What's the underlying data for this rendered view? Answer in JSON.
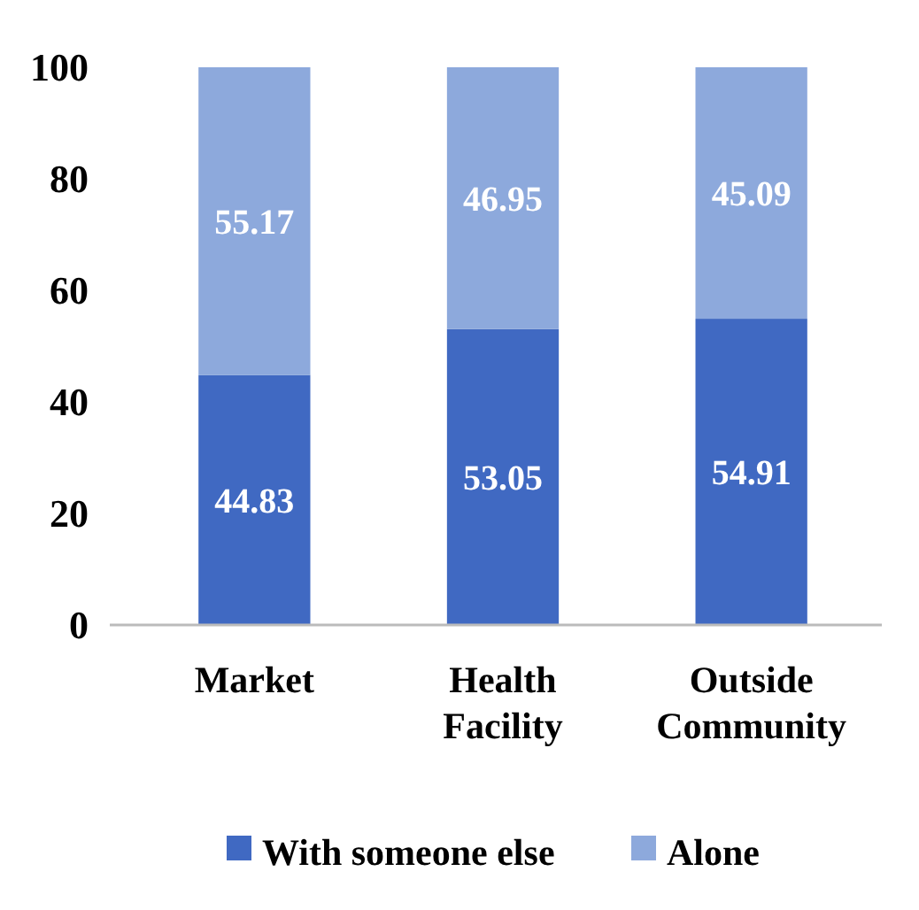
{
  "chart_data": {
    "type": "bar",
    "stacked": true,
    "categories": [
      "Market",
      "Health Facility",
      "Outside Community"
    ],
    "series": [
      {
        "name": "With someone else",
        "color": "#4069c2",
        "values": [
          44.83,
          53.05,
          54.91
        ]
      },
      {
        "name": "Alone",
        "color": "#8da9dc",
        "values": [
          55.17,
          46.95,
          45.09
        ]
      }
    ],
    "ylim": [
      0,
      100
    ],
    "yticks": [
      0,
      20,
      40,
      60,
      80,
      100
    ],
    "data_labels": true,
    "legend": "bottom"
  }
}
